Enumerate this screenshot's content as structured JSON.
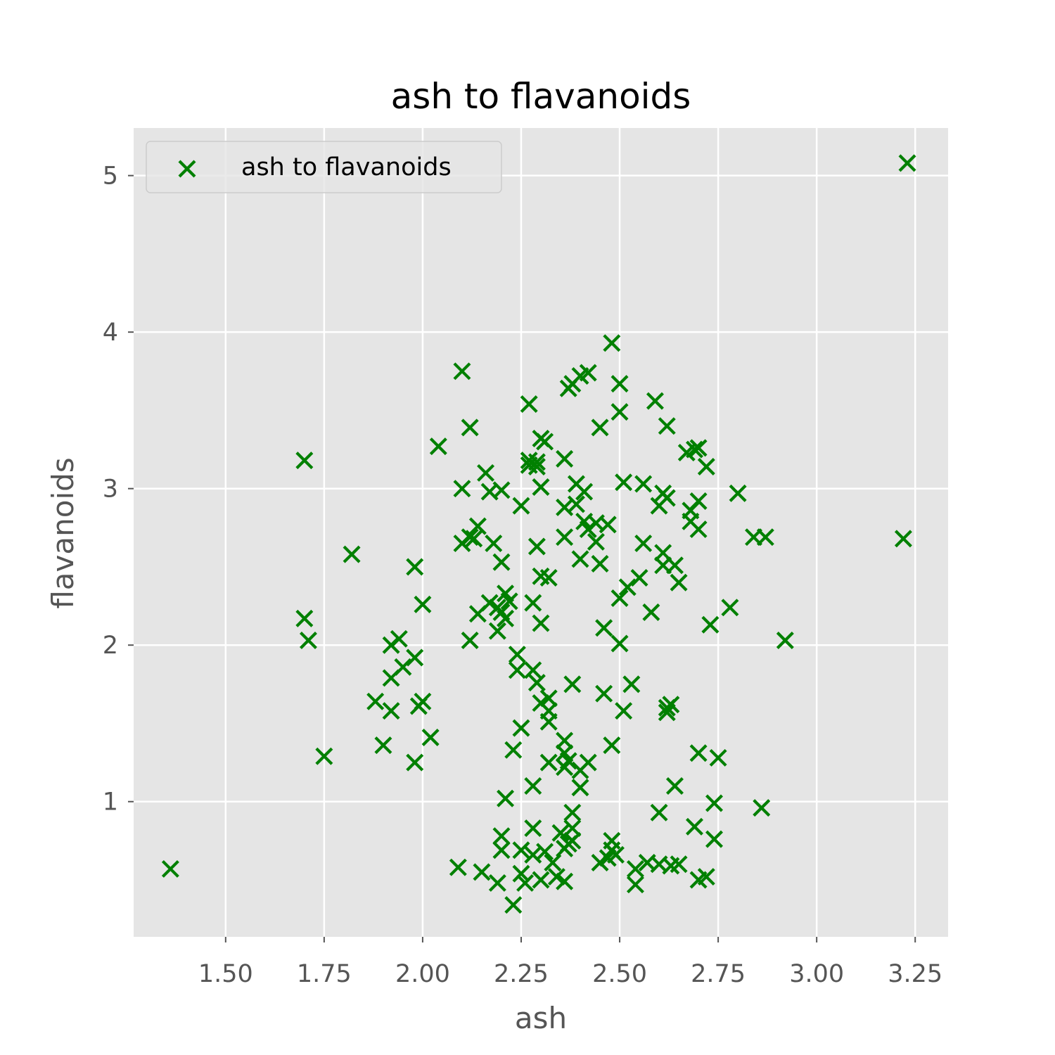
{
  "chart_data": {
    "type": "scatter",
    "title": "ash to flavanoids",
    "xlabel": "ash",
    "ylabel": "flavanoids",
    "xlim": [
      1.2665,
      3.3335
    ],
    "ylim": [
      0.136,
      5.304
    ],
    "xticks": [
      1.5,
      1.75,
      2.0,
      2.25,
      2.5,
      2.75,
      3.0,
      3.25
    ],
    "xtick_labels": [
      "1.50",
      "1.75",
      "2.00",
      "2.25",
      "2.50",
      "2.75",
      "3.00",
      "3.25"
    ],
    "yticks": [
      1,
      2,
      3,
      4,
      5
    ],
    "ytick_labels": [
      "1",
      "2",
      "3",
      "4",
      "5"
    ],
    "grid": true,
    "legend": "upper-left",
    "series": [
      {
        "name": "ash to flavanoids",
        "color": "#008000",
        "marker": "x",
        "points": [
          [
            1.36,
            0.57
          ],
          [
            1.7,
            3.18
          ],
          [
            1.7,
            2.17
          ],
          [
            1.71,
            2.03
          ],
          [
            1.75,
            1.29
          ],
          [
            1.82,
            2.58
          ],
          [
            1.88,
            1.64
          ],
          [
            1.9,
            1.36
          ],
          [
            1.92,
            2.0
          ],
          [
            1.92,
            1.79
          ],
          [
            1.92,
            1.58
          ],
          [
            1.94,
            2.04
          ],
          [
            1.95,
            1.86
          ],
          [
            1.98,
            2.5
          ],
          [
            1.98,
            1.92
          ],
          [
            1.98,
            1.25
          ],
          [
            1.99,
            1.61
          ],
          [
            2.0,
            2.26
          ],
          [
            2.0,
            1.64
          ],
          [
            2.02,
            1.41
          ],
          [
            2.04,
            3.27
          ],
          [
            2.09,
            0.58
          ],
          [
            2.1,
            3.75
          ],
          [
            2.1,
            3.0
          ],
          [
            2.1,
            2.65
          ],
          [
            2.12,
            3.39
          ],
          [
            2.12,
            2.03
          ],
          [
            2.12,
            2.69
          ],
          [
            2.13,
            2.68
          ],
          [
            2.14,
            2.76
          ],
          [
            2.14,
            2.2
          ],
          [
            2.15,
            0.55
          ],
          [
            2.16,
            3.1
          ],
          [
            2.17,
            2.98
          ],
          [
            2.17,
            2.27
          ],
          [
            2.18,
            2.65
          ],
          [
            2.19,
            2.24
          ],
          [
            2.19,
            2.09
          ],
          [
            2.19,
            0.48
          ],
          [
            2.2,
            2.99
          ],
          [
            2.2,
            2.53
          ],
          [
            2.2,
            2.21
          ],
          [
            2.2,
            0.78
          ],
          [
            2.2,
            0.69
          ],
          [
            2.21,
            2.33
          ],
          [
            2.21,
            2.17
          ],
          [
            2.21,
            1.02
          ],
          [
            2.22,
            2.28
          ],
          [
            2.23,
            1.33
          ],
          [
            2.23,
            0.34
          ],
          [
            2.24,
            1.94
          ],
          [
            2.24,
            1.84
          ],
          [
            2.25,
            2.89
          ],
          [
            2.25,
            1.47
          ],
          [
            2.25,
            0.69
          ],
          [
            2.25,
            0.54
          ],
          [
            2.26,
            0.48
          ],
          [
            2.27,
            3.54
          ],
          [
            2.27,
            3.18
          ],
          [
            2.27,
            3.15
          ],
          [
            2.28,
            1.84
          ],
          [
            2.28,
            2.27
          ],
          [
            2.28,
            0.83
          ],
          [
            2.28,
            1.1
          ],
          [
            2.28,
            0.66
          ],
          [
            2.29,
            3.14
          ],
          [
            2.29,
            3.17
          ],
          [
            2.29,
            2.63
          ],
          [
            2.29,
            1.76
          ],
          [
            2.3,
            3.32
          ],
          [
            2.3,
            3.01
          ],
          [
            2.3,
            2.14
          ],
          [
            2.3,
            2.44
          ],
          [
            2.3,
            1.63
          ],
          [
            2.3,
            0.5
          ],
          [
            2.31,
            3.3
          ],
          [
            2.31,
            0.68
          ],
          [
            2.32,
            2.43
          ],
          [
            2.32,
            1.66
          ],
          [
            2.32,
            1.58
          ],
          [
            2.32,
            1.51
          ],
          [
            2.32,
            1.25
          ],
          [
            2.33,
            0.61
          ],
          [
            2.34,
            0.52
          ],
          [
            2.35,
            0.8
          ],
          [
            2.36,
            3.19
          ],
          [
            2.36,
            2.88
          ],
          [
            2.36,
            2.69
          ],
          [
            2.36,
            1.39
          ],
          [
            2.36,
            1.31
          ],
          [
            2.36,
            1.22
          ],
          [
            2.36,
            0.49
          ],
          [
            2.36,
            0.7
          ],
          [
            2.37,
            3.64
          ],
          [
            2.37,
            1.26
          ],
          [
            2.37,
            0.73
          ],
          [
            2.38,
            3.67
          ],
          [
            2.38,
            1.75
          ],
          [
            2.38,
            0.83
          ],
          [
            2.38,
            0.93
          ],
          [
            2.38,
            0.75
          ],
          [
            2.39,
            3.03
          ],
          [
            2.39,
            2.9
          ],
          [
            2.4,
            2.55
          ],
          [
            2.4,
            1.2
          ],
          [
            2.4,
            1.09
          ],
          [
            2.4,
            3.72
          ],
          [
            2.41,
            2.98
          ],
          [
            2.41,
            2.79
          ],
          [
            2.42,
            2.74
          ],
          [
            2.42,
            1.25
          ],
          [
            2.42,
            3.74
          ],
          [
            2.44,
            2.78
          ],
          [
            2.44,
            2.66
          ],
          [
            2.45,
            3.39
          ],
          [
            2.45,
            2.52
          ],
          [
            2.45,
            0.61
          ],
          [
            2.46,
            2.11
          ],
          [
            2.46,
            1.69
          ],
          [
            2.47,
            2.77
          ],
          [
            2.47,
            0.64
          ],
          [
            2.48,
            3.93
          ],
          [
            2.48,
            1.36
          ],
          [
            2.48,
            0.75
          ],
          [
            2.48,
            0.69
          ],
          [
            2.49,
            0.66
          ],
          [
            2.5,
            3.67
          ],
          [
            2.5,
            3.49
          ],
          [
            2.5,
            2.3
          ],
          [
            2.5,
            2.01
          ],
          [
            2.51,
            3.04
          ],
          [
            2.51,
            1.58
          ],
          [
            2.52,
            2.37
          ],
          [
            2.53,
            1.75
          ],
          [
            2.54,
            0.57
          ],
          [
            2.54,
            0.47
          ],
          [
            2.55,
            2.43
          ],
          [
            2.56,
            3.03
          ],
          [
            2.56,
            2.65
          ],
          [
            2.57,
            0.61
          ],
          [
            2.58,
            2.21
          ],
          [
            2.59,
            3.56
          ],
          [
            2.6,
            2.89
          ],
          [
            2.6,
            0.93
          ],
          [
            2.6,
            0.6
          ],
          [
            2.61,
            2.97
          ],
          [
            2.61,
            2.59
          ],
          [
            2.61,
            2.51
          ],
          [
            2.62,
            3.4
          ],
          [
            2.62,
            2.94
          ],
          [
            2.62,
            1.6
          ],
          [
            2.62,
            1.57
          ],
          [
            2.63,
            1.62
          ],
          [
            2.63,
            0.59
          ],
          [
            2.64,
            2.51
          ],
          [
            2.64,
            1.1
          ],
          [
            2.65,
            2.4
          ],
          [
            2.65,
            0.6
          ],
          [
            2.67,
            3.23
          ],
          [
            2.68,
            2.86
          ],
          [
            2.68,
            2.79
          ],
          [
            2.69,
            3.25
          ],
          [
            2.69,
            0.84
          ],
          [
            2.7,
            3.26
          ],
          [
            2.7,
            2.92
          ],
          [
            2.7,
            2.74
          ],
          [
            2.7,
            1.31
          ],
          [
            2.7,
            0.5
          ],
          [
            2.72,
            3.14
          ],
          [
            2.72,
            0.52
          ],
          [
            2.73,
            2.13
          ],
          [
            2.74,
            0.99
          ],
          [
            2.74,
            0.76
          ],
          [
            2.75,
            1.28
          ],
          [
            2.78,
            2.24
          ],
          [
            2.8,
            2.97
          ],
          [
            2.84,
            2.69
          ],
          [
            2.86,
            0.96
          ],
          [
            2.87,
            2.69
          ],
          [
            2.92,
            2.03
          ],
          [
            3.22,
            2.68
          ],
          [
            3.23,
            5.08
          ]
        ]
      }
    ]
  }
}
